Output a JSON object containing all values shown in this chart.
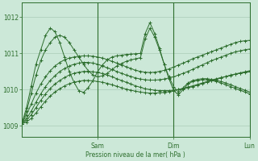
{
  "background_color": "#cce8d8",
  "plot_bg_color": "#cce8d8",
  "grid_color": "#aaccb8",
  "line_color": "#2d6e2d",
  "xlabel": "Pression niveau de la mer( hPa )",
  "ylim": [
    1008.7,
    1012.4
  ],
  "yticks": [
    1009,
    1010,
    1011,
    1012
  ],
  "xlim": [
    0,
    144
  ],
  "day_ticks": [
    48,
    96,
    144
  ],
  "day_labels": [
    "Sam",
    "Dim",
    "Lun"
  ],
  "series": [
    {
      "x": [
        0,
        3,
        6,
        9,
        12,
        15,
        18,
        21,
        24,
        27,
        30,
        33,
        36,
        39,
        42,
        45,
        48,
        51,
        54,
        57,
        60,
        63,
        66,
        69,
        72,
        75,
        78,
        81,
        84,
        87,
        90,
        93,
        96,
        99,
        102,
        105,
        108,
        111,
        114,
        117,
        120,
        123,
        126,
        129,
        132,
        135,
        138,
        141,
        144
      ],
      "y": [
        1009.05,
        1009.5,
        1010.1,
        1010.7,
        1011.1,
        1011.5,
        1011.7,
        1011.6,
        1011.3,
        1010.9,
        1010.5,
        1010.2,
        1009.97,
        1009.92,
        1010.05,
        1010.25,
        1010.5,
        1010.68,
        1010.82,
        1010.9,
        1010.93,
        1010.95,
        1010.97,
        1010.98,
        1010.99,
        1011.0,
        1011.55,
        1011.85,
        1011.55,
        1011.15,
        1010.7,
        1010.3,
        1009.97,
        1009.85,
        1010.0,
        1010.15,
        1010.22,
        1010.25,
        1010.27,
        1010.27,
        1010.25,
        1010.22,
        1010.18,
        1010.13,
        1010.08,
        1010.03,
        1009.98,
        1009.93,
        1009.88
      ]
    },
    {
      "x": [
        0,
        3,
        6,
        9,
        12,
        15,
        18,
        21,
        24,
        27,
        30,
        33,
        36,
        39,
        42,
        45,
        48,
        51,
        54,
        57,
        60,
        63,
        66,
        69,
        72,
        75,
        78,
        81,
        84,
        87,
        90,
        93,
        96,
        99,
        102,
        105,
        108,
        111,
        114,
        117,
        120,
        123,
        126,
        129,
        132,
        135,
        138,
        141,
        144
      ],
      "y": [
        1009.05,
        1009.4,
        1009.9,
        1010.4,
        1010.8,
        1011.1,
        1011.3,
        1011.45,
        1011.5,
        1011.45,
        1011.3,
        1011.1,
        1010.9,
        1010.7,
        1010.52,
        1010.4,
        1010.35,
        1010.38,
        1010.45,
        1010.55,
        1010.65,
        1010.72,
        1010.78,
        1010.82,
        1010.85,
        1010.88,
        1011.4,
        1011.7,
        1011.45,
        1011.1,
        1010.7,
        1010.35,
        1010.08,
        1009.92,
        1010.05,
        1010.18,
        1010.25,
        1010.28,
        1010.3,
        1010.3,
        1010.28,
        1010.25,
        1010.22,
        1010.18,
        1010.13,
        1010.08,
        1010.03,
        1009.98,
        1009.93
      ]
    },
    {
      "x": [
        0,
        3,
        6,
        9,
        12,
        15,
        18,
        21,
        24,
        27,
        30,
        33,
        36,
        39,
        42,
        45,
        48,
        51,
        54,
        57,
        60,
        63,
        66,
        69,
        72,
        75,
        78,
        81,
        84,
        87,
        90,
        93,
        96,
        99,
        102,
        105,
        108,
        111,
        114,
        117,
        120,
        123,
        126,
        129,
        132,
        135,
        138,
        141,
        144
      ],
      "y": [
        1009.05,
        1009.3,
        1009.6,
        1009.9,
        1010.15,
        1010.35,
        1010.52,
        1010.65,
        1010.75,
        1010.82,
        1010.87,
        1010.9,
        1010.92,
        1010.93,
        1010.93,
        1010.92,
        1010.9,
        1010.87,
        1010.83,
        1010.78,
        1010.73,
        1010.68,
        1010.63,
        1010.58,
        1010.53,
        1010.5,
        1010.48,
        1010.47,
        1010.48,
        1010.5,
        1010.53,
        1010.57,
        1010.62,
        1010.68,
        1010.73,
        1010.79,
        1010.85,
        1010.9,
        1010.95,
        1011.0,
        1011.05,
        1011.1,
        1011.15,
        1011.2,
        1011.25,
        1011.3,
        1011.33,
        1011.35,
        1011.36
      ]
    },
    {
      "x": [
        0,
        3,
        6,
        9,
        12,
        15,
        18,
        21,
        24,
        27,
        30,
        33,
        36,
        39,
        42,
        45,
        48,
        51,
        54,
        57,
        60,
        63,
        66,
        69,
        72,
        75,
        78,
        81,
        84,
        87,
        90,
        93,
        96,
        99,
        102,
        105,
        108,
        111,
        114,
        117,
        120,
        123,
        126,
        129,
        132,
        135,
        138,
        141,
        144
      ],
      "y": [
        1009.05,
        1009.2,
        1009.4,
        1009.65,
        1009.88,
        1010.08,
        1010.25,
        1010.38,
        1010.5,
        1010.58,
        1010.65,
        1010.7,
        1010.73,
        1010.75,
        1010.75,
        1010.73,
        1010.7,
        1010.65,
        1010.6,
        1010.55,
        1010.5,
        1010.45,
        1010.4,
        1010.36,
        1010.32,
        1010.29,
        1010.27,
        1010.26,
        1010.26,
        1010.27,
        1010.29,
        1010.32,
        1010.35,
        1010.4,
        1010.45,
        1010.5,
        1010.56,
        1010.62,
        1010.68,
        1010.74,
        1010.8,
        1010.85,
        1010.9,
        1010.95,
        1011.0,
        1011.04,
        1011.07,
        1011.1,
        1011.12
      ]
    },
    {
      "x": [
        0,
        3,
        6,
        9,
        12,
        15,
        18,
        21,
        24,
        27,
        30,
        33,
        36,
        39,
        42,
        45,
        48,
        51,
        54,
        57,
        60,
        63,
        66,
        69,
        72,
        75,
        78,
        81,
        84,
        87,
        90,
        93,
        96,
        99,
        102,
        105,
        108,
        111,
        114,
        117,
        120,
        123,
        126,
        129,
        132,
        135,
        138,
        141,
        144
      ],
      "y": [
        1009.05,
        1009.15,
        1009.3,
        1009.5,
        1009.7,
        1009.88,
        1010.03,
        1010.15,
        1010.25,
        1010.33,
        1010.4,
        1010.45,
        1010.48,
        1010.5,
        1010.5,
        1010.49,
        1010.47,
        1010.44,
        1010.4,
        1010.35,
        1010.3,
        1010.25,
        1010.2,
        1010.15,
        1010.1,
        1010.06,
        1010.02,
        1010.0,
        1009.98,
        1009.97,
        1009.97,
        1009.97,
        1009.98,
        1010.0,
        1010.02,
        1010.05,
        1010.08,
        1010.12,
        1010.16,
        1010.2,
        1010.24,
        1010.28,
        1010.32,
        1010.36,
        1010.4,
        1010.43,
        1010.46,
        1010.49,
        1010.52
      ]
    },
    {
      "x": [
        0,
        3,
        6,
        9,
        12,
        15,
        18,
        21,
        24,
        27,
        30,
        33,
        36,
        39,
        42,
        45,
        48,
        51,
        54,
        57,
        60,
        63,
        66,
        69,
        72,
        75,
        78,
        81,
        84,
        87,
        90,
        93,
        96,
        99,
        102,
        105,
        108,
        111,
        114,
        117,
        120,
        123,
        126,
        129,
        132,
        135,
        138,
        141,
        144
      ],
      "y": [
        1009.05,
        1009.1,
        1009.2,
        1009.35,
        1009.52,
        1009.68,
        1009.82,
        1009.93,
        1010.02,
        1010.1,
        1010.16,
        1010.2,
        1010.23,
        1010.25,
        1010.25,
        1010.24,
        1010.22,
        1010.2,
        1010.17,
        1010.13,
        1010.09,
        1010.05,
        1010.01,
        1009.98,
        1009.95,
        1009.93,
        1009.91,
        1009.9,
        1009.9,
        1009.91,
        1009.92,
        1009.94,
        1009.97,
        1010.0,
        1010.03,
        1010.07,
        1010.1,
        1010.14,
        1010.18,
        1010.22,
        1010.26,
        1010.3,
        1010.33,
        1010.36,
        1010.39,
        1010.42,
        1010.45,
        1010.47,
        1010.49
      ]
    }
  ]
}
